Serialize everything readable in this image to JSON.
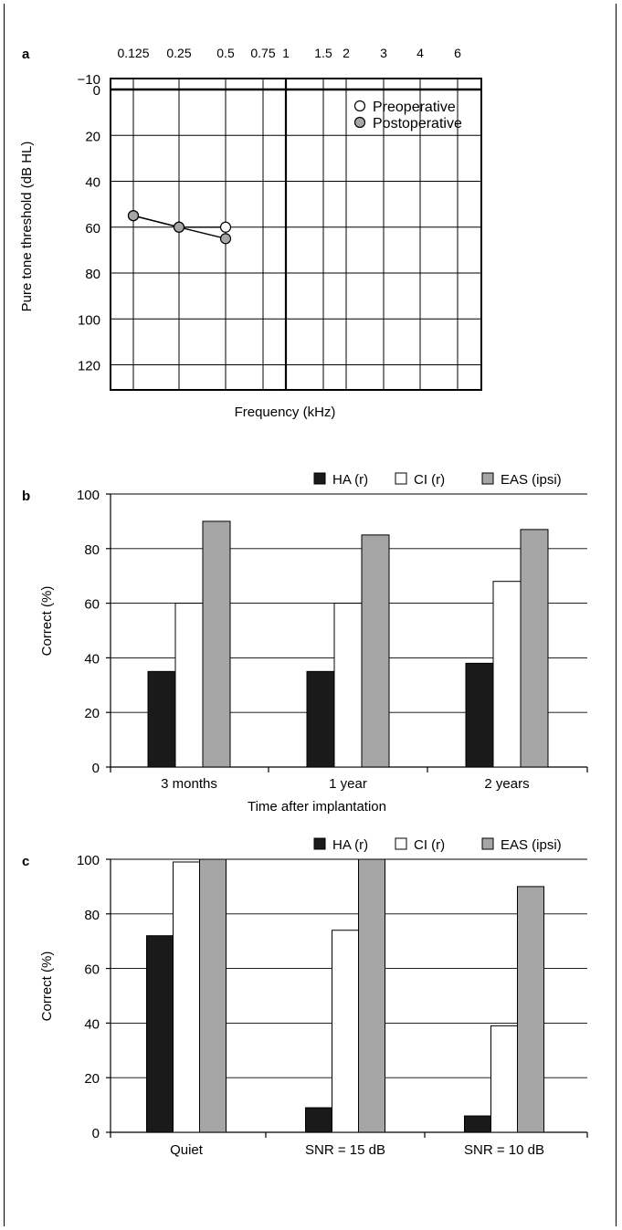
{
  "colors": {
    "ha": "#1a1a1a",
    "ci": "#ffffff",
    "eas": "#a6a6a6",
    "post_marker": "#a6a6a6",
    "pre_marker": "#ffffff",
    "line": "#000000"
  },
  "chart_data": [
    {
      "panel_letter": "a",
      "type": "line",
      "title": "",
      "xlabel": "Frequency (kHz)",
      "ylabel": "Pure tone threshold (dB HL)",
      "x_tick_labels": [
        "0.125",
        "0.25",
        "0.5",
        "0.75",
        "1",
        "1.5",
        "2",
        "3",
        "4",
        "6"
      ],
      "y_ticks": [
        -10,
        0,
        20,
        40,
        60,
        80,
        100,
        120
      ],
      "ylim": [
        -10,
        130
      ],
      "y_inverted": true,
      "grid": true,
      "legend_position": "top-right",
      "series": [
        {
          "name": "Preoperative",
          "marker": "open-circle",
          "x": [
            "0.125",
            "0.25",
            "0.5"
          ],
          "y": [
            55,
            60,
            60
          ]
        },
        {
          "name": "Postoperative",
          "marker": "filled-circle",
          "x": [
            "0.125",
            "0.25",
            "0.5"
          ],
          "y": [
            55,
            60,
            65
          ]
        }
      ]
    },
    {
      "panel_letter": "b",
      "type": "bar",
      "title": "",
      "xlabel": "Time after implantation",
      "ylabel": "Correct (%)",
      "categories": [
        "3 months",
        "1 year",
        "2 years"
      ],
      "y_ticks": [
        0,
        20,
        40,
        60,
        80,
        100
      ],
      "ylim": [
        0,
        100
      ],
      "grid": true,
      "legend_position": "top-right",
      "series": [
        {
          "name": "HA (r)",
          "values": [
            35,
            35,
            38
          ]
        },
        {
          "name": "CI (r)",
          "values": [
            60,
            60,
            68
          ]
        },
        {
          "name": "EAS (ipsi)",
          "values": [
            90,
            85,
            87
          ]
        }
      ]
    },
    {
      "panel_letter": "c",
      "type": "bar",
      "title": "",
      "xlabel": "",
      "ylabel": "Correct (%)",
      "categories": [
        "Quiet",
        "SNR = 15 dB",
        "SNR = 10 dB"
      ],
      "y_ticks": [
        0,
        20,
        40,
        60,
        80,
        100
      ],
      "ylim": [
        0,
        100
      ],
      "grid": true,
      "legend_position": "top-right",
      "series": [
        {
          "name": "HA (r)",
          "values": [
            72,
            9,
            6
          ]
        },
        {
          "name": "CI (r)",
          "values": [
            99,
            74,
            39
          ]
        },
        {
          "name": "EAS (ipsi)",
          "values": [
            100,
            100,
            90
          ]
        }
      ]
    }
  ]
}
